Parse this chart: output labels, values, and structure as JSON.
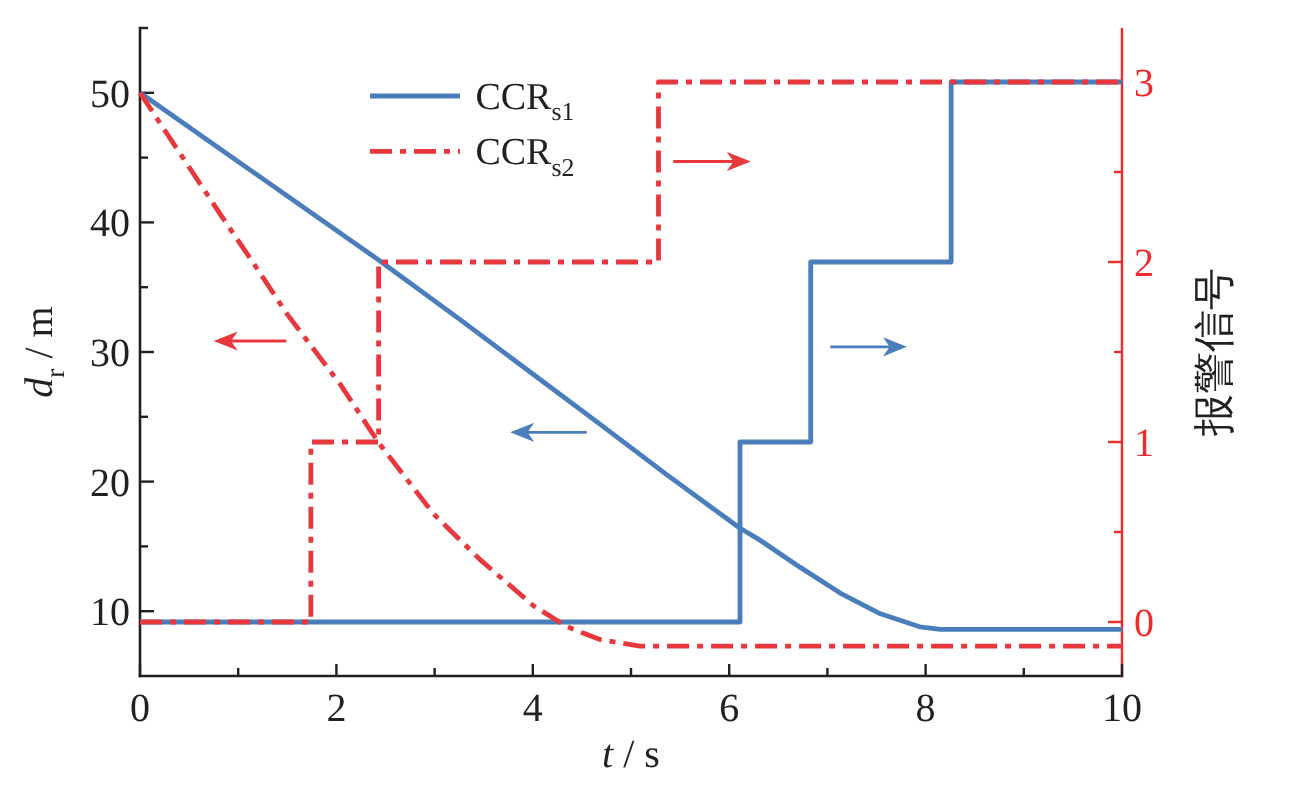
{
  "chart_data": {
    "type": "line",
    "xlabel": "*t* / s",
    "ylabel": "*d*$_{r}$ / m",
    "y2label": "报警信号",
    "xlim": [
      0,
      10
    ],
    "xticks": [
      0,
      {
        "value": 1,
        "label": null
      },
      2,
      {
        "value": 3,
        "label": null
      },
      4,
      {
        "value": 5,
        "label": null
      },
      6,
      {
        "value": 7,
        "label": null
      },
      8,
      {
        "value": 9,
        "label": null
      },
      10
    ],
    "ylim": [
      5,
      55
    ],
    "yticks": [
      10,
      {
        "value": 15,
        "label": null
      },
      20,
      {
        "value": 25,
        "label": null
      },
      30,
      {
        "value": 35,
        "label": null
      },
      40,
      {
        "value": 45,
        "label": null
      },
      50,
      {
        "value": 55,
        "label": null
      }
    ],
    "y2lim": [
      -0.3,
      3.3
    ],
    "y2ticks": [
      0,
      {
        "value": 0.5,
        "label": null
      },
      1,
      {
        "value": 1.5,
        "label": null
      },
      2,
      {
        "value": 2.5,
        "label": null
      },
      3
    ],
    "legend": "top left",
    "series": [
      {
        "name": "CCR$_{s1}$",
        "color": "#4a7ebb",
        "line_style": "solid",
        "x": [
          0,
          2.43,
          3.26,
          4,
          4.69,
          5.37,
          6.11,
          6.31,
          6.72,
          7.13,
          7.54,
          7.94,
          8.15,
          10
        ],
        "values": [
          50,
          37.1,
          32.5,
          28.3,
          24.4,
          20.5,
          16.4,
          15.5,
          13.4,
          11.4,
          9.8,
          8.8,
          8.6,
          8.6
        ]
      },
      {
        "type": "step",
        "axis": "y2",
        "color": "#4a7ebb",
        "line_style": "solid",
        "x": [
          0,
          6.11,
          6.83,
          8.26,
          10
        ],
        "values": [
          0,
          1,
          2,
          3,
          3
        ]
      },
      {
        "name": "CCR$_{s2}$",
        "color": "#e8383d",
        "line_style": "dashdot",
        "x": [
          0,
          0.34,
          0.82,
          1.16,
          1.5,
          2.04,
          2.43,
          2.99,
          3.46,
          4.01,
          4.35,
          4.69,
          5.09,
          10
        ],
        "values": [
          50,
          46.1,
          40.6,
          36.8,
          32.9,
          27.5,
          23,
          17.5,
          14,
          10.4,
          8.8,
          7.8,
          7.3,
          7.3
        ]
      },
      {
        "type": "step",
        "axis": "y2",
        "color": "#e8383d",
        "line_style": "dashdot",
        "x": [
          0,
          1.74,
          2.43,
          5.28,
          10
        ],
        "values": [
          0,
          1,
          2,
          3,
          3
        ]
      }
    ]
  }
}
